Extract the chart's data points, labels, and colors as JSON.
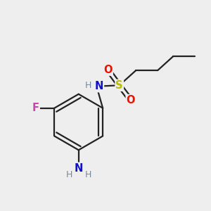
{
  "background_color": "#eeeeee",
  "bond_color": "#222222",
  "bond_width": 1.6,
  "atom_colors": {
    "N_sulfonamide": "#1111cc",
    "N_amine": "#1111cc",
    "S": "#bbbb00",
    "O": "#ee1100",
    "F": "#cc44aa",
    "H": "#778899"
  },
  "figsize": [
    3.0,
    3.0
  ],
  "dpi": 100,
  "xlim": [
    0,
    10
  ],
  "ylim": [
    0,
    10
  ]
}
